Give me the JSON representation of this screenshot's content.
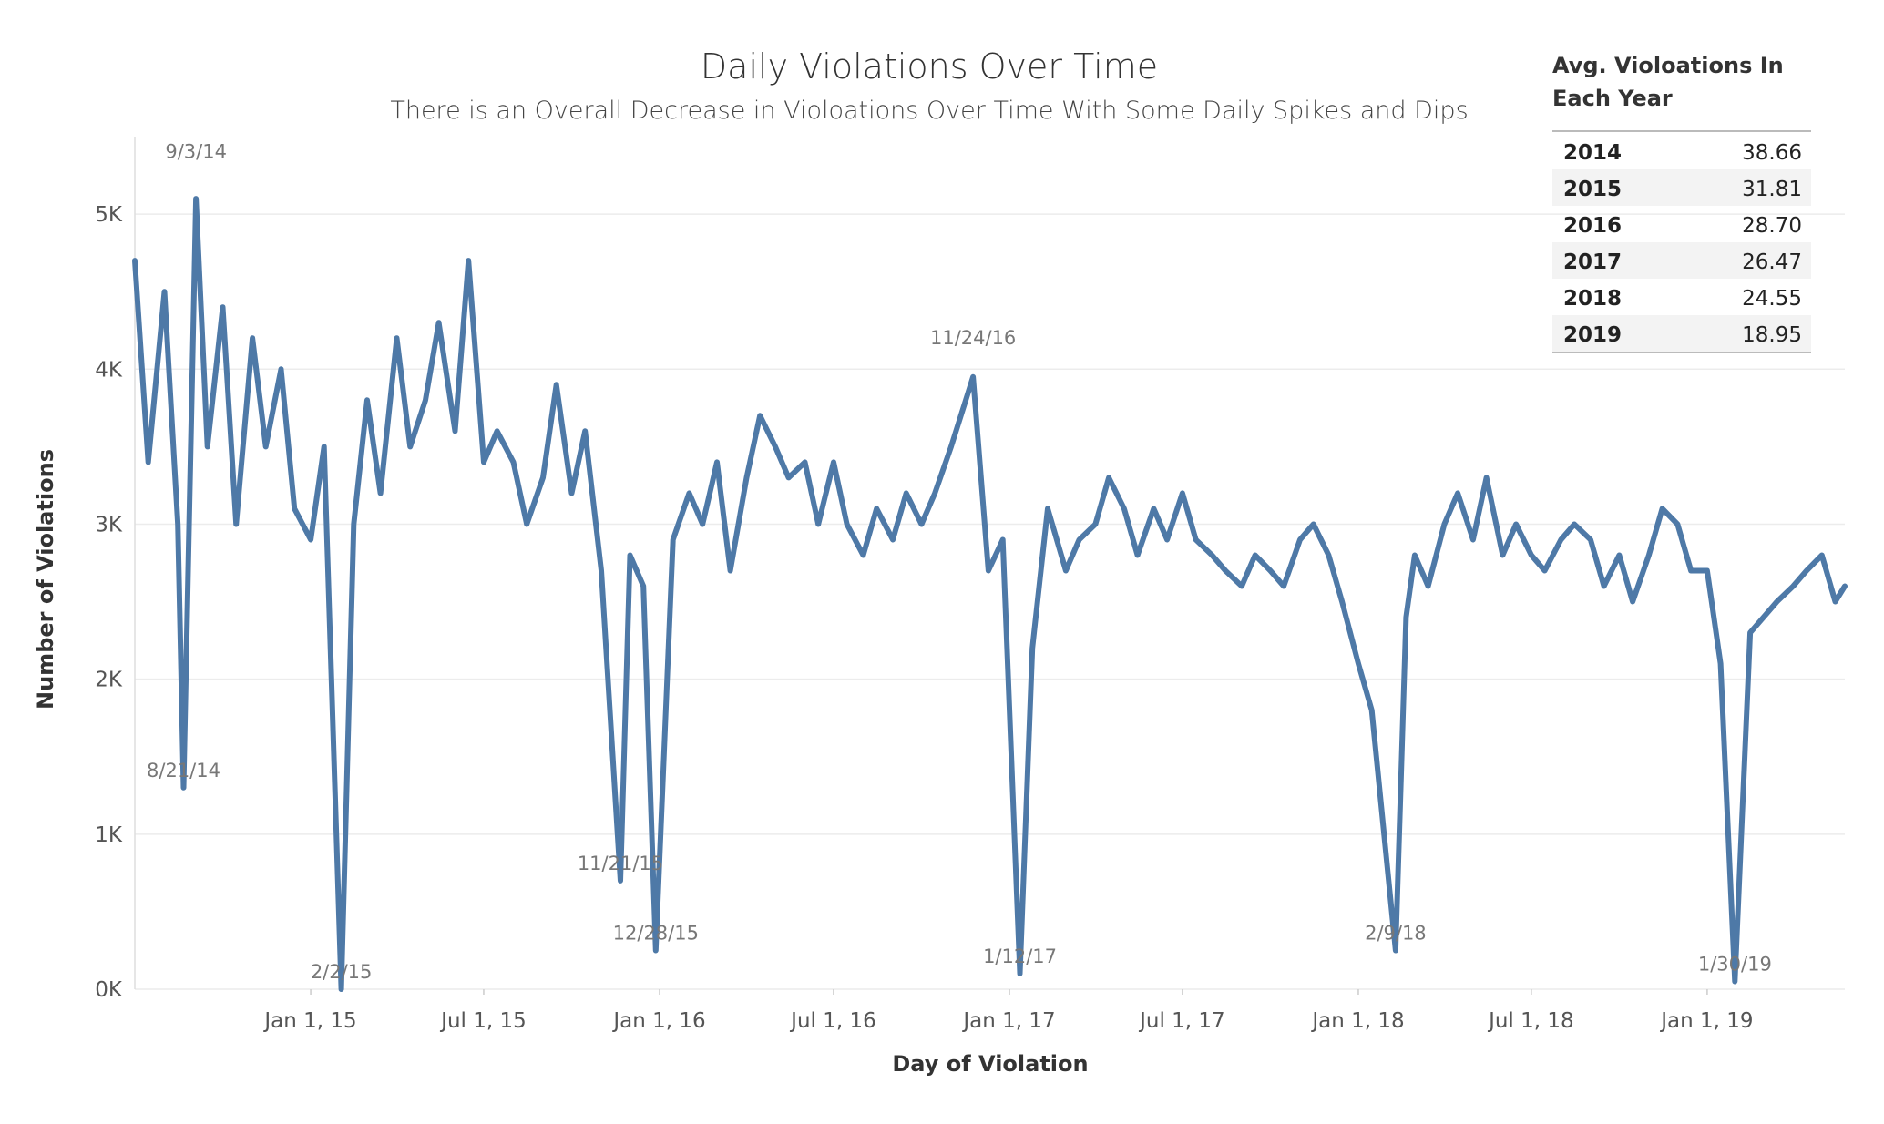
{
  "chart_data": {
    "type": "line",
    "title": "Daily Violations Over Time",
    "subtitle": "There is an Overall Decrease in Violoations Over Time With Some Daily Spikes and Dips",
    "xlabel": "Day of Violation",
    "ylabel": "Number of Violations",
    "x_range": [
      "2014-07-01",
      "2019-05-25"
    ],
    "ylim": [
      0,
      5500
    ],
    "y_ticks": [
      0,
      1000,
      2000,
      3000,
      4000,
      5000
    ],
    "y_tick_labels": [
      "0K",
      "1K",
      "2K",
      "3K",
      "4K",
      "5K"
    ],
    "x_ticks": [
      "2015-01-01",
      "2015-07-01",
      "2016-01-01",
      "2016-07-01",
      "2017-01-01",
      "2017-07-01",
      "2018-01-01",
      "2018-07-01",
      "2019-01-01"
    ],
    "x_tick_labels": [
      "Jan 1, 15",
      "Jul 1, 15",
      "Jan 1, 16",
      "Jul 1, 16",
      "Jan 1, 17",
      "Jul 1, 17",
      "Jan 1, 18",
      "Jul 1, 18",
      "Jan 1, 19"
    ],
    "grid": true,
    "series_color": "#4e79a7",
    "series": [
      {
        "x": [
          "2014-07-01",
          "2014-07-15",
          "2014-08-01",
          "2014-08-15",
          "2014-08-21",
          "2014-09-03",
          "2014-09-15",
          "2014-10-01",
          "2014-10-15",
          "2014-11-01",
          "2014-11-15",
          "2014-12-01",
          "2014-12-15",
          "2015-01-01",
          "2015-01-15",
          "2015-02-02",
          "2015-02-15",
          "2015-03-01",
          "2015-03-15",
          "2015-04-01",
          "2015-04-15",
          "2015-05-01",
          "2015-05-15",
          "2015-06-01",
          "2015-06-15",
          "2015-07-01",
          "2015-07-15",
          "2015-08-01",
          "2015-08-15",
          "2015-09-01",
          "2015-09-15",
          "2015-10-01",
          "2015-10-15",
          "2015-11-01",
          "2015-11-21",
          "2015-12-01",
          "2015-12-15",
          "2015-12-28",
          "2016-01-15",
          "2016-02-01",
          "2016-02-15",
          "2016-03-01",
          "2016-03-15",
          "2016-04-01",
          "2016-04-15",
          "2016-05-01",
          "2016-05-15",
          "2016-06-01",
          "2016-06-15",
          "2016-07-01",
          "2016-07-15",
          "2016-08-01",
          "2016-08-15",
          "2016-09-01",
          "2016-09-15",
          "2016-10-01",
          "2016-10-15",
          "2016-11-01",
          "2016-11-24",
          "2016-12-10",
          "2016-12-25",
          "2017-01-12",
          "2017-01-25",
          "2017-02-10",
          "2017-03-01",
          "2017-03-15",
          "2017-04-01",
          "2017-04-15",
          "2017-05-01",
          "2017-05-15",
          "2017-06-01",
          "2017-06-15",
          "2017-07-01",
          "2017-07-15",
          "2017-08-01",
          "2017-08-15",
          "2017-09-01",
          "2017-09-15",
          "2017-10-01",
          "2017-10-15",
          "2017-11-01",
          "2017-11-15",
          "2017-12-01",
          "2017-12-15",
          "2018-01-01",
          "2018-01-15",
          "2018-02-09",
          "2018-02-20",
          "2018-03-01",
          "2018-03-15",
          "2018-04-01",
          "2018-04-15",
          "2018-05-01",
          "2018-05-15",
          "2018-06-01",
          "2018-06-15",
          "2018-07-01",
          "2018-07-15",
          "2018-08-01",
          "2018-08-15",
          "2018-09-01",
          "2018-09-15",
          "2018-10-01",
          "2018-10-15",
          "2018-11-01",
          "2018-11-15",
          "2018-12-01",
          "2018-12-15",
          "2019-01-01",
          "2019-01-15",
          "2019-01-30",
          "2019-02-15",
          "2019-03-01",
          "2019-03-15",
          "2019-04-01",
          "2019-04-15",
          "2019-05-01",
          "2019-05-15",
          "2019-05-25"
        ],
        "values": [
          4700,
          3400,
          4500,
          3000,
          1300,
          5100,
          3500,
          4400,
          3000,
          4200,
          3500,
          4000,
          3100,
          2900,
          3500,
          0,
          3000,
          3800,
          3200,
          4200,
          3500,
          3800,
          4300,
          3600,
          4700,
          3400,
          3600,
          3400,
          3000,
          3300,
          3900,
          3200,
          3600,
          2700,
          700,
          2800,
          2600,
          250,
          2900,
          3200,
          3000,
          3400,
          2700,
          3300,
          3700,
          3500,
          3300,
          3400,
          3000,
          3400,
          3000,
          2800,
          3100,
          2900,
          3200,
          3000,
          3200,
          3500,
          3950,
          2700,
          2900,
          100,
          2200,
          3100,
          2700,
          2900,
          3000,
          3300,
          3100,
          2800,
          3100,
          2900,
          3200,
          2900,
          2800,
          2700,
          2600,
          2800,
          2700,
          2600,
          2900,
          3000,
          2800,
          2500,
          2100,
          1800,
          250,
          2400,
          2800,
          2600,
          3000,
          3200,
          2900,
          3300,
          2800,
          3000,
          2800,
          2700,
          2900,
          3000,
          2900,
          2600,
          2800,
          2500,
          2800,
          3100,
          3000,
          2700,
          2700,
          2100,
          50,
          2300,
          2400,
          2500,
          2600,
          2700,
          2800,
          2500,
          2600
        ]
      }
    ],
    "annotations": [
      {
        "label": "9/3/14",
        "x": "2014-09-03",
        "y": 5150
      },
      {
        "label": "8/21/14",
        "x": "2014-08-21",
        "y": 1300
      },
      {
        "label": "2/2/15",
        "x": "2015-02-02",
        "y": 0
      },
      {
        "label": "11/21/15",
        "x": "2015-11-21",
        "y": 700
      },
      {
        "label": "12/28/15",
        "x": "2015-12-28",
        "y": 250
      },
      {
        "label": "11/24/16",
        "x": "2016-11-24",
        "y": 3950
      },
      {
        "label": "1/12/17",
        "x": "2017-01-12",
        "y": 100
      },
      {
        "label": "2/9/18",
        "x": "2018-02-09",
        "y": 250
      },
      {
        "label": "1/30/19",
        "x": "2019-01-30",
        "y": 50
      }
    ]
  },
  "summary_table": {
    "title_line1": "Avg. Violoations In",
    "title_line2": "Each Year",
    "rows": [
      {
        "year": "2014",
        "value": "38.66"
      },
      {
        "year": "2015",
        "value": "31.81"
      },
      {
        "year": "2016",
        "value": "28.70"
      },
      {
        "year": "2017",
        "value": "26.47"
      },
      {
        "year": "2018",
        "value": "24.55"
      },
      {
        "year": "2019",
        "value": "18.95"
      }
    ]
  }
}
